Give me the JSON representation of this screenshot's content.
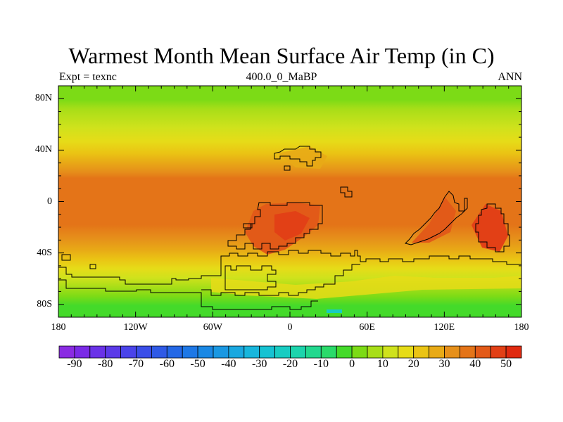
{
  "title": "Warmest Month Mean Surface Air Temp (in C)",
  "subtitle_left": "Expt = texnc",
  "subtitle_center": "400.0_0_MaBP",
  "subtitle_right": "ANN",
  "lat_labels": [
    "80N",
    "40N",
    "0",
    "40S",
    "80S"
  ],
  "lat_values": [
    80,
    40,
    0,
    -40,
    -80
  ],
  "lon_labels": [
    "180",
    "120W",
    "60W",
    "0",
    "60E",
    "120E",
    "180"
  ],
  "lon_values": [
    -180,
    -120,
    -60,
    0,
    60,
    120,
    180
  ],
  "colorbar": {
    "labels": [
      "-90",
      "-80",
      "-70",
      "-60",
      "-50",
      "-40",
      "-30",
      "-20",
      "-10",
      "0",
      "10",
      "20",
      "30",
      "40",
      "50"
    ],
    "levels": [
      -95,
      -90,
      -85,
      -80,
      -75,
      -70,
      -65,
      -60,
      -55,
      -50,
      -45,
      -40,
      -35,
      -30,
      -25,
      -20,
      -15,
      -10,
      -5,
      0,
      5,
      10,
      15,
      20,
      25,
      30,
      35,
      40,
      45,
      50,
      55
    ],
    "colors": [
      "#8a2be2",
      "#7a2ae6",
      "#6a32e8",
      "#5b3ae8",
      "#4a44ea",
      "#3a4ee8",
      "#2f5ae6",
      "#2468e6",
      "#1e78e6",
      "#1a88e4",
      "#1a98e2",
      "#1aa8e0",
      "#18b6dc",
      "#16c2d2",
      "#18ccc2",
      "#1cd4ac",
      "#22d88e",
      "#2ada6a",
      "#44da2a",
      "#7cdb16",
      "#a8de18",
      "#cfe21c",
      "#e6dc18",
      "#eac414",
      "#e8aa16",
      "#e6901a",
      "#e47418",
      "#e25a18",
      "#e24016",
      "#e02a10"
    ]
  },
  "colors": {
    "outline": "#000000"
  }
}
